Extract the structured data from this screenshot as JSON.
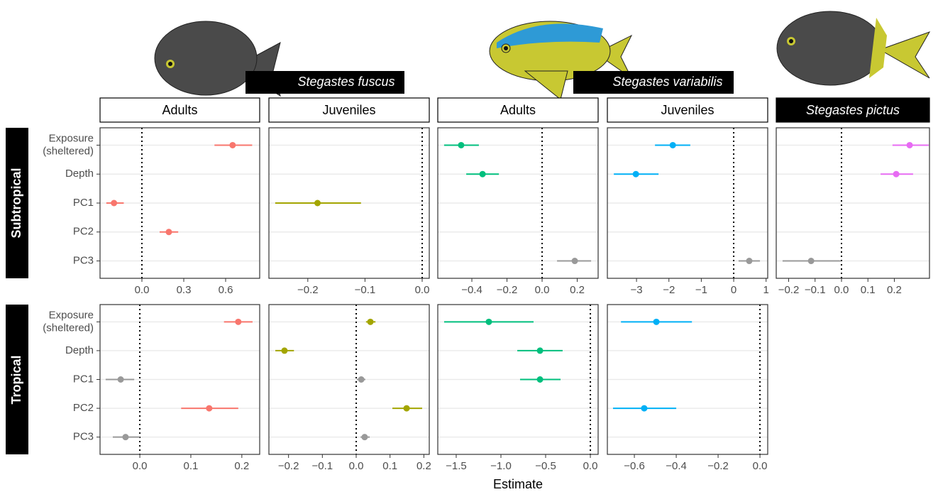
{
  "species": [
    "Stegastes fuscus",
    "Stegastes variabilis"
  ],
  "strips": [
    "Adults",
    "Juveniles",
    "Adults",
    "Juveniles",
    "Stegastes pictus"
  ],
  "rows": [
    "Subtropical",
    "Tropical"
  ],
  "categories": [
    "Exposure (sheltered)",
    "Depth",
    "PC1",
    "PC2",
    "PC3"
  ],
  "x_label": "Estimate",
  "chart_data": [
    {
      "type": "forest",
      "xlim": [
        -0.3,
        0.844
      ],
      "xticks": [
        {
          "value": 0,
          "label": "0.0"
        },
        0.3,
        0.6
      ],
      "values": [
        0.65,
        null,
        -0.2,
        0.193,
        null
      ],
      "lower": [
        0.52,
        null,
        -0.255,
        0.127,
        null
      ],
      "upper": [
        0.79,
        null,
        -0.13,
        0.26,
        null
      ],
      "colors": [
        "#F8766D",
        null,
        "#F8766D",
        "#F8766D",
        null
      ]
    },
    {
      "type": "forest",
      "xlim": [
        -0.268,
        0.0124
      ],
      "xticks": [
        {
          "value": -0.2,
          "label": "−0.2"
        },
        {
          "value": -0.1,
          "label": "−0.1"
        },
        {
          "value": 0,
          "label": "0.0"
        }
      ],
      "values": [
        null,
        null,
        -0.183,
        null,
        null
      ],
      "lower": [
        null,
        null,
        -0.257,
        null,
        null
      ],
      "upper": [
        null,
        null,
        -0.107,
        null,
        null
      ],
      "colors": [
        null,
        null,
        "#A3A500",
        null,
        null
      ]
    },
    {
      "type": "forest",
      "xlim": [
        -0.594,
        0.319
      ],
      "xticks": [
        {
          "value": -0.4,
          "label": "−0.4"
        },
        {
          "value": -0.2,
          "label": "−0.2"
        },
        {
          "value": 0,
          "label": "0.0"
        },
        0.2
      ],
      "values": [
        -0.461,
        -0.339,
        null,
        null,
        0.186
      ],
      "lower": [
        -0.558,
        -0.432,
        null,
        null,
        0.085
      ],
      "upper": [
        -0.36,
        -0.246,
        null,
        null,
        0.279
      ],
      "colors": [
        "#00BF7D",
        "#00BF7D",
        null,
        null,
        "#999999"
      ]
    },
    {
      "type": "forest",
      "xlim": [
        -3.9,
        1.05
      ],
      "xticks": [
        {
          "value": -3,
          "label": "−3"
        },
        {
          "value": -2,
          "label": "−2"
        },
        {
          "value": -1,
          "label": "−1"
        },
        0,
        1
      ],
      "values": [
        -1.88,
        -3.02,
        null,
        null,
        0.48
      ],
      "lower": [
        -2.43,
        -3.7,
        null,
        null,
        0.15
      ],
      "upper": [
        -1.34,
        -2.32,
        null,
        null,
        0.81
      ],
      "colors": [
        "#00B0F6",
        "#00B0F6",
        null,
        null,
        "#999999"
      ]
    },
    {
      "type": "forest",
      "xlim": [
        -0.247,
        0.333
      ],
      "xticks": [
        {
          "value": -0.2,
          "label": "−0.2"
        },
        {
          "value": -0.1,
          "label": "−0.1"
        },
        {
          "value": 0,
          "label": "0.0"
        },
        0.1,
        0.2
      ],
      "values": [
        0.258,
        0.207,
        null,
        null,
        -0.115
      ],
      "lower": [
        0.193,
        0.148,
        null,
        null,
        -0.223
      ],
      "upper": [
        0.33,
        0.271,
        null,
        null,
        -0.003
      ],
      "colors": [
        "#E76BF3",
        "#E76BF3",
        null,
        null,
        "#999999"
      ]
    },
    {
      "type": "forest",
      "xlim": [
        -0.078,
        0.235
      ],
      "xticks": [
        {
          "value": 0,
          "label": "0.0"
        },
        0.1,
        0.2
      ],
      "values": [
        0.193,
        null,
        -0.0375,
        0.136,
        -0.028
      ],
      "lower": [
        0.165,
        null,
        -0.067,
        0.081,
        -0.053
      ],
      "upper": [
        0.221,
        null,
        -0.011,
        0.193,
        0
      ],
      "colors": [
        "#F8766D",
        null,
        "#999999",
        "#F8766D",
        "#999999"
      ]
    },
    {
      "type": "forest",
      "xlim": [
        -0.258,
        0.216
      ],
      "xticks": [
        {
          "value": -0.2,
          "label": "−0.2"
        },
        {
          "value": -0.1,
          "label": "−0.1"
        },
        {
          "value": 0,
          "label": "0.0"
        },
        0.1,
        0.2
      ],
      "values": [
        0.042,
        -0.212,
        0.015,
        0.149,
        0.025
      ],
      "lower": [
        0.029,
        -0.239,
        0.002,
        0.107,
        0.013
      ],
      "upper": [
        0.057,
        -0.184,
        0.027,
        0.195,
        0.04
      ],
      "colors": [
        "#A3A500",
        "#A3A500",
        "#999999",
        "#A3A500",
        "#999999"
      ]
    },
    {
      "type": "forest",
      "xlim": [
        -1.706,
        0.087
      ],
      "xticks": [
        {
          "value": -1.5,
          "label": "−1.5"
        },
        {
          "value": -1,
          "label": "−1.0"
        },
        {
          "value": -0.5,
          "label": "−0.5"
        },
        {
          "value": 0,
          "label": "0.0"
        }
      ],
      "values": [
        -1.135,
        -0.563,
        -0.563,
        null,
        null
      ],
      "lower": [
        -1.635,
        -0.817,
        -0.786,
        null,
        null
      ],
      "upper": [
        -0.635,
        -0.31,
        -0.333,
        null,
        null
      ],
      "colors": [
        "#00BF7D",
        "#00BF7D",
        "#00BF7D",
        null,
        null
      ]
    },
    {
      "type": "forest",
      "xlim": [
        -0.729,
        0.037
      ],
      "xticks": [
        {
          "value": -0.6,
          "label": "−0.6"
        },
        {
          "value": -0.4,
          "label": "−0.4"
        },
        {
          "value": -0.2,
          "label": "−0.2"
        },
        {
          "value": 0,
          "label": "0.0"
        }
      ],
      "values": [
        -0.495,
        null,
        null,
        -0.553,
        null
      ],
      "lower": [
        -0.664,
        null,
        null,
        -0.702,
        null
      ],
      "upper": [
        -0.325,
        null,
        null,
        -0.4,
        null
      ],
      "colors": [
        "#00B0F6",
        null,
        null,
        "#00B0F6",
        null
      ]
    }
  ]
}
